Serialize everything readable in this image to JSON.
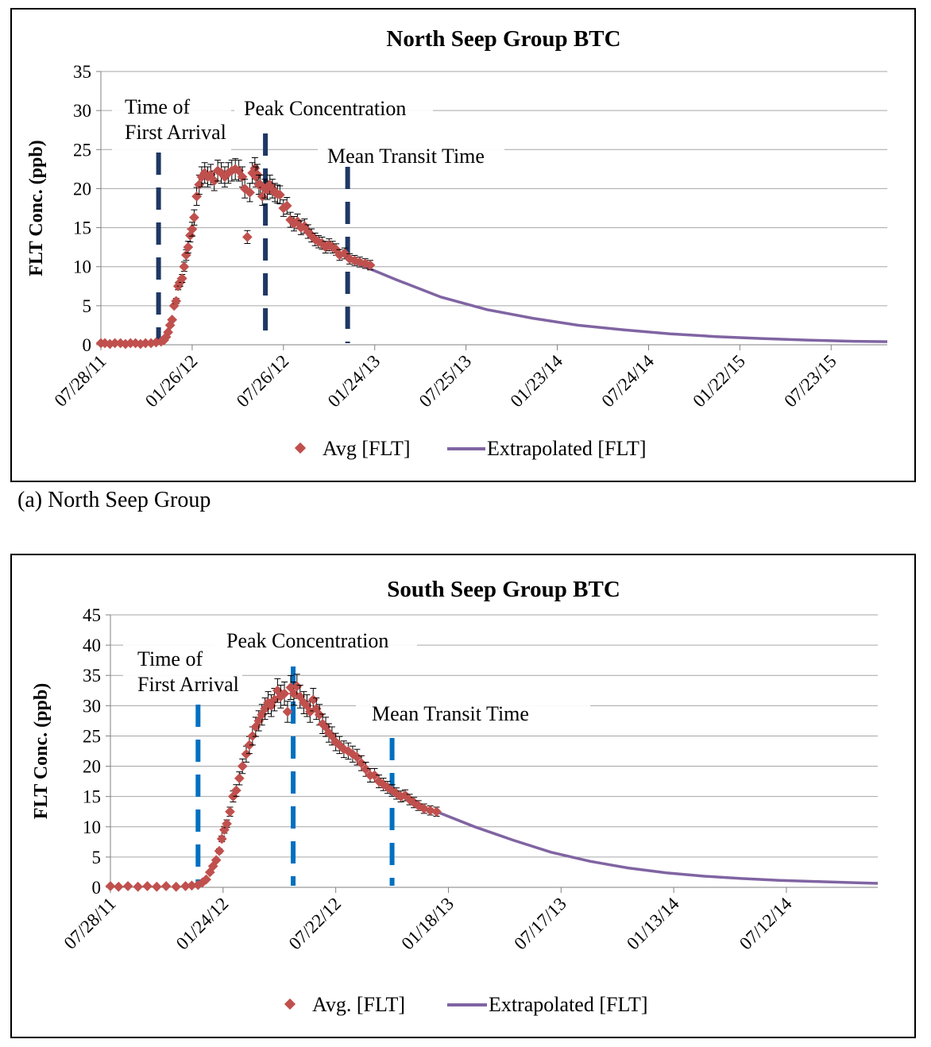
{
  "colors": {
    "avg": "#c0504d",
    "extrap": "#8064a2",
    "north_line": "#1f3864",
    "south_line": "#0070c0",
    "grid": "#a6a6a6"
  },
  "caption": "(a) North Seep Group",
  "chart_data": [
    {
      "type": "scatter",
      "title": "North Seep Group BTC",
      "ylabel": "FLT Conc. (ppb)",
      "xlabel": "",
      "ylim": [
        0,
        35
      ],
      "yticks": [
        0,
        5,
        10,
        15,
        20,
        25,
        30,
        35
      ],
      "xlim": [
        "07/28/11",
        "11/12/15"
      ],
      "xticks": [
        "07/28/11",
        "01/26/12",
        "07/26/12",
        "01/24/13",
        "07/25/13",
        "01/23/14",
        "07/24/14",
        "01/22/15",
        "07/23/15"
      ],
      "grid": true,
      "legend": "bottom",
      "legend_labels": {
        "avg": "Avg [FLT]",
        "extrap": "Extrapolated [FLT]"
      },
      "annotations": [
        {
          "lines": [
            "Time of",
            "First Arrival"
          ],
          "x": "11/20/11"
        },
        {
          "lines": [
            "Peak Concentration"
          ],
          "x": "06/20/12"
        },
        {
          "lines": [
            "Mean Transit Time"
          ],
          "x": "12/01/12"
        }
      ],
      "series": [
        {
          "name": "Avg [FLT]",
          "kind": "points",
          "x": [
            "07/28/11",
            "08/05/11",
            "08/15/11",
            "08/25/11",
            "09/05/11",
            "09/15/11",
            "09/25/11",
            "10/05/11",
            "10/15/11",
            "10/25/11",
            "11/05/11",
            "11/15/11",
            "11/25/11",
            "12/01/11",
            "12/05/11",
            "12/09/11",
            "12/13/11",
            "12/17/11",
            "12/21/11",
            "12/25/11",
            "12/29/11",
            "01/02/12",
            "01/06/12",
            "01/10/12",
            "01/14/12",
            "01/18/12",
            "01/22/12",
            "01/26/12",
            "01/30/12",
            "02/04/12",
            "02/09/12",
            "02/14/12",
            "02/20/12",
            "02/26/12",
            "03/03/12",
            "03/10/12",
            "03/17/12",
            "03/24/12",
            "03/31/12",
            "04/07/12",
            "04/14/12",
            "04/21/12",
            "04/28/12",
            "05/05/12",
            "05/10/12",
            "05/15/12",
            "05/20/12",
            "05/25/12",
            "05/30/12",
            "06/01/12",
            "06/04/12",
            "06/07/12",
            "06/10/12",
            "06/14/12",
            "06/19/12",
            "06/24/12",
            "06/29/12",
            "07/04/12",
            "07/09/12",
            "07/14/12",
            "07/19/12",
            "07/26/12",
            "08/02/12",
            "08/09/12",
            "08/16/12",
            "08/23/12",
            "08/30/12",
            "09/06/12",
            "09/13/12",
            "09/20/12",
            "09/27/12",
            "10/04/12",
            "10/11/12",
            "10/18/12",
            "10/25/12",
            "11/01/12",
            "11/08/12",
            "11/15/12",
            "11/25/12",
            "12/05/12",
            "12/15/12",
            "12/25/12",
            "01/05/13",
            "01/15/13"
          ],
          "y": [
            0.2,
            0.2,
            0.1,
            0.2,
            0.2,
            0.1,
            0.2,
            0.2,
            0.1,
            0.2,
            0.2,
            0.3,
            0.4,
            0.6,
            1,
            1.6,
            2.5,
            3.2,
            5,
            5.6,
            7.5,
            8,
            8.5,
            10,
            11.5,
            12.5,
            14,
            14.8,
            16.3,
            19,
            20.5,
            21.5,
            22,
            21.5,
            21.8,
            21,
            22.3,
            22,
            21.5,
            22,
            22.3,
            22.5,
            22.3,
            21.5,
            20,
            13.8,
            19.5,
            22,
            22.6,
            21.5,
            21.8,
            20.5,
            20.5,
            19,
            20,
            19.8,
            20.5,
            20,
            19.5,
            19.3,
            19.2,
            17.5,
            17.8,
            16,
            15.5,
            15.8,
            15,
            15.2,
            14.5,
            14,
            13.5,
            13.2,
            13,
            12.5,
            12.8,
            12.5,
            12.2,
            11.5,
            11.7,
            11,
            10.8,
            10.6,
            10.4,
            10.2
          ]
        },
        {
          "name": "Extrapolated [FLT]",
          "kind": "line",
          "x": [
            "12/05/12",
            "03/05/13",
            "06/05/13",
            "09/05/13",
            "12/05/13",
            "03/05/14",
            "06/05/14",
            "09/05/14",
            "12/05/14",
            "03/05/15",
            "06/05/15",
            "09/05/15",
            "11/12/15"
          ],
          "y": [
            10.8,
            8.4,
            6.1,
            4.5,
            3.4,
            2.5,
            1.9,
            1.4,
            1.05,
            0.8,
            0.6,
            0.45,
            0.4
          ]
        }
      ]
    },
    {
      "type": "scatter",
      "title": "South Seep Group BTC",
      "ylabel": "FLT Conc. (ppb)",
      "xlabel": "",
      "ylim": [
        0,
        45
      ],
      "yticks": [
        0,
        5,
        10,
        15,
        20,
        25,
        30,
        35,
        40,
        45
      ],
      "xlim": [
        "07/28/11",
        "12/05/14"
      ],
      "xticks": [
        "07/28/11",
        "01/24/12",
        "07/22/12",
        "01/18/13",
        "07/17/13",
        "01/13/14",
        "07/12/14"
      ],
      "grid": true,
      "legend": "bottom",
      "legend_labels": {
        "avg": "Avg. [FLT]",
        "extrap": "Extrapolated [FLT]"
      },
      "annotations": [
        {
          "lines": [
            "Time of",
            "First Arrival"
          ],
          "x": "12/15/11"
        },
        {
          "lines": [
            "Peak Concentration"
          ],
          "x": "05/15/12"
        },
        {
          "lines": [
            "Mean Transit Time"
          ],
          "x": "10/20/12"
        }
      ],
      "series": [
        {
          "name": "Avg. [FLT]",
          "kind": "points",
          "x": [
            "07/28/11",
            "08/10/11",
            "08/25/11",
            "09/10/11",
            "09/25/11",
            "10/10/11",
            "10/25/11",
            "11/10/11",
            "11/25/11",
            "12/05/11",
            "12/15/11",
            "12/22/11",
            "12/28/11",
            "01/03/12",
            "01/08/12",
            "01/13/12",
            "01/18/12",
            "01/22/12",
            "01/26/12",
            "01/30/12",
            "02/04/12",
            "02/09/12",
            "02/14/12",
            "02/19/12",
            "02/24/12",
            "03/01/12",
            "03/06/12",
            "03/11/12",
            "03/16/12",
            "03/21/12",
            "03/26/12",
            "03/31/12",
            "04/05/12",
            "04/10/12",
            "04/15/12",
            "04/20/12",
            "04/25/12",
            "05/01/12",
            "05/06/12",
            "05/11/12",
            "05/16/12",
            "05/21/12",
            "05/26/12",
            "06/01/12",
            "06/06/12",
            "06/11/12",
            "06/16/12",
            "06/21/12",
            "06/26/12",
            "07/01/12",
            "07/06/12",
            "07/11/12",
            "07/16/12",
            "07/22/12",
            "07/28/12",
            "08/04/12",
            "08/11/12",
            "08/18/12",
            "08/25/12",
            "09/01/12",
            "09/08/12",
            "09/15/12",
            "09/22/12",
            "09/29/12",
            "10/06/12",
            "10/13/12",
            "10/20/12",
            "10/27/12",
            "11/03/12",
            "11/10/12",
            "11/17/12",
            "11/24/12",
            "12/01/12",
            "12/10/12",
            "12/20/12",
            "12/30/12"
          ],
          "y": [
            0.2,
            0.1,
            0.2,
            0.1,
            0.2,
            0.1,
            0.2,
            0.1,
            0.2,
            0.3,
            0.4,
            0.8,
            1.3,
            2.5,
            3.5,
            4.5,
            6,
            8,
            9.5,
            10.5,
            12.5,
            15,
            16,
            18,
            20,
            22,
            23.5,
            25,
            26.5,
            27.5,
            28.5,
            29.5,
            30.5,
            30,
            31,
            32.5,
            31.5,
            32,
            29,
            33,
            32,
            33.2,
            31.5,
            30.5,
            30,
            29,
            31,
            29.5,
            28.5,
            27,
            26.5,
            25.5,
            25,
            24,
            23.5,
            22.8,
            22.5,
            22,
            21.5,
            20.5,
            19.5,
            18.5,
            18.5,
            17.5,
            17,
            16.5,
            16,
            15.5,
            15,
            15.2,
            14.5,
            14,
            13.5,
            13,
            12.7,
            12.5
          ]
        },
        {
          "name": "Extrapolated [FLT]",
          "kind": "line",
          "x": [
            "12/30/12",
            "03/01/13",
            "05/01/13",
            "07/01/13",
            "09/01/13",
            "11/01/13",
            "01/01/14",
            "03/01/14",
            "05/01/14",
            "07/01/14",
            "09/01/14",
            "11/01/14",
            "12/05/14"
          ],
          "y": [
            12.5,
            10,
            7.8,
            5.8,
            4.3,
            3.2,
            2.4,
            1.85,
            1.45,
            1.15,
            0.95,
            0.75,
            0.65
          ]
        }
      ]
    }
  ]
}
